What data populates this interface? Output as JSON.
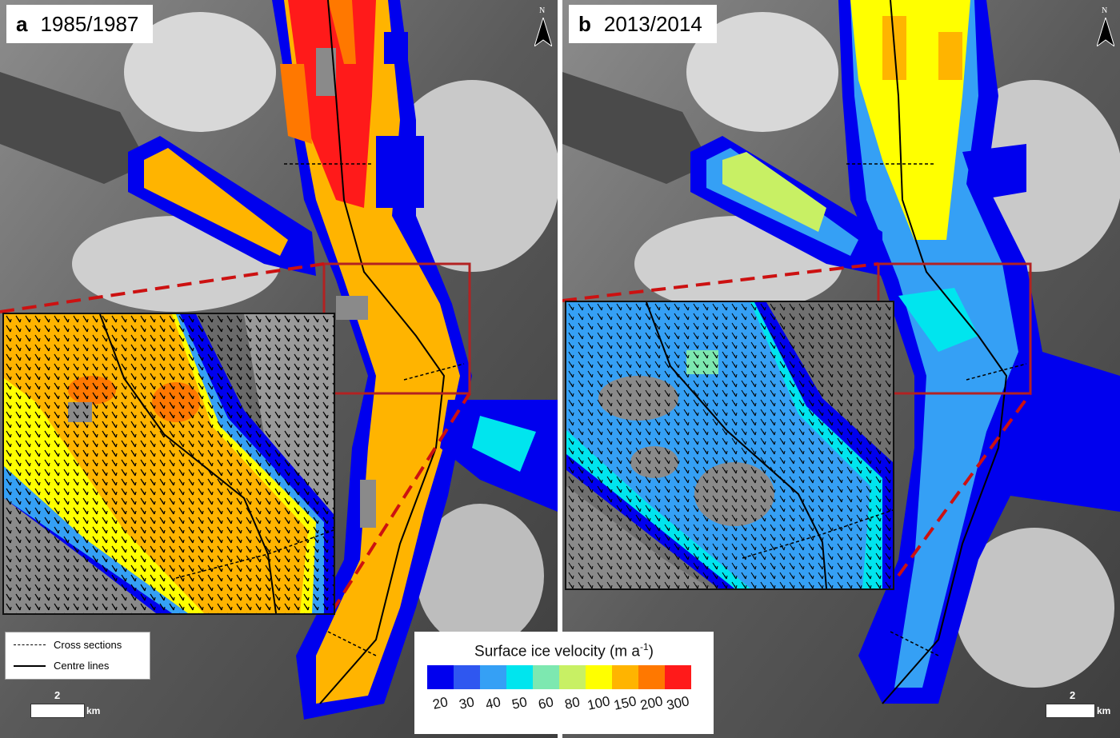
{
  "panels": [
    {
      "letter": "a",
      "years": "1985/1987"
    },
    {
      "letter": "b",
      "years": "2013/2014"
    }
  ],
  "north_label": "N",
  "scale": {
    "value": "2",
    "unit": "km"
  },
  "legend": {
    "cross_sections": "Cross sections",
    "centre_lines": "Centre lines"
  },
  "colorbar": {
    "title_main": "Surface ice velocity (m a",
    "title_sup": "-1",
    "title_end": ")",
    "ticks": [
      "20",
      "30",
      "40",
      "50",
      "60",
      "80",
      "100",
      "150",
      "200",
      "300"
    ],
    "colors": [
      "#0000ee",
      "#2f57f0",
      "#35a0f5",
      "#00e5ee",
      "#7de8b0",
      "#c8f064",
      "#ffff00",
      "#ffb400",
      "#ff7800",
      "#ff1a1a"
    ]
  },
  "colors": {
    "inset_box": "#b22222",
    "zoom_lines": "#cc1111"
  }
}
